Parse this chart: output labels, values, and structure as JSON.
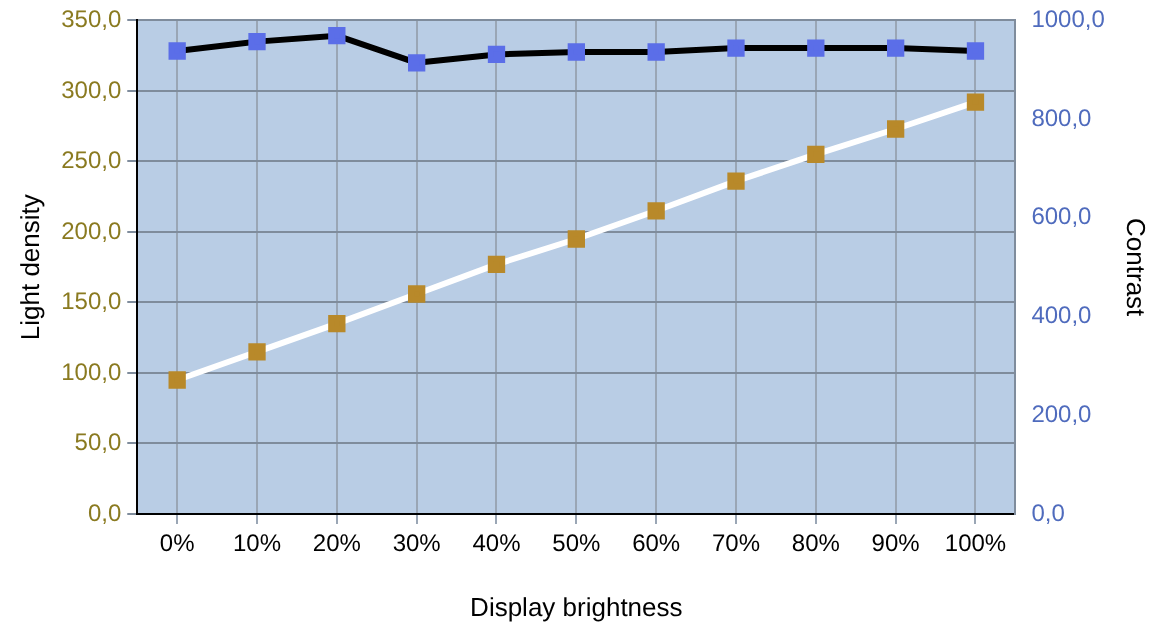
{
  "chart_data": {
    "type": "line",
    "xlabel": "Display brightness",
    "ylabel": "Light density",
    "y2label": "Contrast",
    "categories": [
      "0%",
      "10%",
      "20%",
      "30%",
      "40%",
      "50%",
      "60%",
      "70%",
      "80%",
      "90%",
      "100%"
    ],
    "series": [
      {
        "axis": "y2",
        "color": "#000000",
        "colors": [
          "#5b6ee8",
          "#5b6ee8",
          "#5b6ee8",
          "#5b6ee8",
          "#5b6ee8",
          "#5b6ee8",
          "#5b6ee8",
          "#5b6ee8",
          "#5b6ee8",
          "#5b6ee8",
          "#5b6ee8"
        ],
        "values": [
          938,
          957,
          969,
          914,
          931,
          936,
          936,
          944,
          944,
          944,
          938
        ]
      },
      {
        "axis": "y",
        "color": "#ffffff",
        "colors": [
          "#b8892a",
          "#b8892a",
          "#b8892a",
          "#b8892a",
          "#b8892a",
          "#b8892a",
          "#b8892a",
          "#b8892a",
          "#b8892a",
          "#b8892a",
          "#b8892a"
        ],
        "values": [
          95,
          115,
          135,
          156,
          177,
          195,
          215,
          236,
          255,
          273,
          292
        ]
      }
    ],
    "ylim": [
      0,
      350
    ],
    "yticks": [
      {
        "value": 0,
        "label": "0,0"
      },
      {
        "value": 50,
        "label": "50,0"
      },
      {
        "value": 100,
        "label": "100,0"
      },
      {
        "value": 150,
        "label": "150,0"
      },
      {
        "value": 200,
        "label": "200,0"
      },
      {
        "value": 250,
        "label": "250,0"
      },
      {
        "value": 300,
        "label": "300,0"
      },
      {
        "value": 350,
        "label": "350,0"
      }
    ],
    "y2lim": [
      0,
      1000
    ],
    "y2ticks": [
      {
        "value": 0,
        "label": "0,0"
      },
      {
        "value": 200,
        "label": "200,0"
      },
      {
        "value": 400,
        "label": "400,0"
      },
      {
        "value": 600,
        "label": "600,0"
      },
      {
        "value": 800,
        "label": "800,0"
      },
      {
        "value": 1000,
        "label": "1000,0"
      }
    ],
    "grid": true,
    "legend": false,
    "marker": "square",
    "line_style": "solid"
  }
}
